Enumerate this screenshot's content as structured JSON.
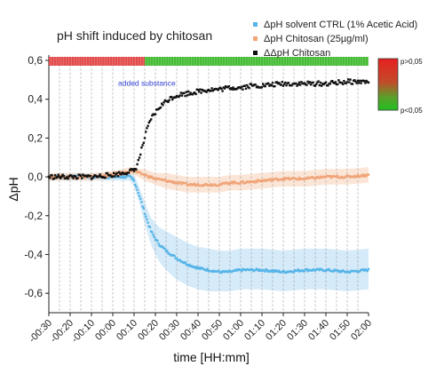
{
  "chart_data": {
    "type": "scatter",
    "title": "pH shift induced by chitosan",
    "xlabel": "time [HH:mm]",
    "ylabel": "ΔpH",
    "xunit": "minutes",
    "xlim": [
      -30,
      120
    ],
    "ylim": [
      -0.7,
      0.6
    ],
    "x_ticks": [
      -30,
      -20,
      -10,
      0,
      10,
      20,
      30,
      40,
      50,
      60,
      70,
      80,
      90,
      100,
      110,
      120
    ],
    "x_tick_labels": [
      "-00:30",
      "-00:20",
      "-00:10",
      "00:00",
      "00:10",
      "00:20",
      "00:30",
      "00:40",
      "00:50",
      "01:00",
      "01:10",
      "01:20",
      "01:30",
      "01:40",
      "01:50",
      "02:00"
    ],
    "y_ticks": [
      -0.6,
      -0.4,
      -0.2,
      0.0,
      0.2,
      0.4,
      0.6
    ],
    "y_tick_labels": [
      "-0,6",
      "-0,4",
      "-0,2",
      "0,0",
      "0,2",
      "0,4",
      "0,6"
    ],
    "legend_position": "top-right",
    "grid": "vertical dashed lines",
    "annotation": {
      "text": "added substance",
      "x": 16,
      "y": 0.47
    },
    "significance_bar": {
      "y": 0.6,
      "segments": [
        {
          "x_start": -30,
          "x_end": 15,
          "color": "#e24a4a"
        },
        {
          "x_start": 15,
          "x_end": 120,
          "color": "#44bb33"
        }
      ]
    },
    "colorbar": {
      "labels": [
        "p>0,05",
        "p<0,05"
      ],
      "colors_top_to_bottom": [
        "#e82020",
        "#c24a2a",
        "#5aa02a",
        "#22c022"
      ]
    },
    "series": [
      {
        "name": "ΔpH solvent CTRL (1% Acetic Acid)",
        "color": "#55b4e8",
        "band_color": "#c7e4f7",
        "marker": "square",
        "x": [
          -30,
          -20,
          -10,
          0,
          8,
          10,
          12,
          14,
          16,
          18,
          20,
          22,
          25,
          30,
          35,
          40,
          45,
          50,
          55,
          60,
          70,
          80,
          90,
          100,
          110,
          120
        ],
        "y": [
          0.0,
          0.0,
          0.0,
          0.0,
          0.0,
          -0.02,
          -0.08,
          -0.15,
          -0.22,
          -0.28,
          -0.32,
          -0.35,
          -0.38,
          -0.42,
          -0.45,
          -0.47,
          -0.48,
          -0.49,
          -0.49,
          -0.48,
          -0.48,
          -0.49,
          -0.48,
          -0.48,
          -0.49,
          -0.48
        ],
        "band_low": [
          -0.02,
          -0.02,
          -0.02,
          -0.02,
          -0.02,
          -0.05,
          -0.12,
          -0.2,
          -0.28,
          -0.35,
          -0.4,
          -0.44,
          -0.48,
          -0.53,
          -0.56,
          -0.58,
          -0.59,
          -0.59,
          -0.59,
          -0.58,
          -0.58,
          -0.59,
          -0.58,
          -0.58,
          -0.59,
          -0.58
        ],
        "band_high": [
          0.02,
          0.02,
          0.02,
          0.02,
          0.02,
          0.01,
          -0.04,
          -0.1,
          -0.16,
          -0.21,
          -0.24,
          -0.26,
          -0.28,
          -0.31,
          -0.34,
          -0.36,
          -0.37,
          -0.38,
          -0.38,
          -0.37,
          -0.37,
          -0.38,
          -0.37,
          -0.37,
          -0.38,
          -0.37
        ]
      },
      {
        "name": "ΔpH Chitosan (25µg/ml)",
        "color": "#f0a478",
        "band_color": "#f9dcc8",
        "marker": "square",
        "x": [
          -30,
          -20,
          -10,
          0,
          5,
          8,
          10,
          12,
          15,
          20,
          25,
          30,
          35,
          40,
          45,
          50,
          55,
          60,
          70,
          80,
          90,
          100,
          110,
          120
        ],
        "y": [
          0.0,
          0.0,
          0.0,
          0.01,
          0.02,
          0.03,
          0.03,
          0.02,
          0.01,
          -0.01,
          -0.02,
          -0.03,
          -0.04,
          -0.04,
          -0.04,
          -0.04,
          -0.03,
          -0.03,
          -0.02,
          -0.01,
          -0.01,
          0.0,
          0.0,
          0.01
        ],
        "band_low": [
          -0.02,
          -0.02,
          -0.02,
          -0.01,
          0.0,
          0.01,
          0.01,
          0.0,
          -0.02,
          -0.04,
          -0.06,
          -0.07,
          -0.08,
          -0.08,
          -0.08,
          -0.08,
          -0.07,
          -0.07,
          -0.06,
          -0.05,
          -0.05,
          -0.04,
          -0.04,
          -0.03
        ],
        "band_high": [
          0.02,
          0.02,
          0.02,
          0.03,
          0.04,
          0.05,
          0.05,
          0.04,
          0.04,
          0.02,
          0.02,
          0.01,
          0.0,
          0.0,
          0.0,
          0.0,
          0.01,
          0.01,
          0.02,
          0.03,
          0.03,
          0.04,
          0.04,
          0.05
        ]
      },
      {
        "name": "ΔΔpH Chitosan",
        "color": "#111111",
        "marker": "square",
        "x": [
          -30,
          -20,
          -10,
          0,
          5,
          8,
          10,
          11,
          12,
          13,
          14,
          15,
          16,
          17,
          18,
          20,
          22,
          25,
          28,
          30,
          35,
          40,
          45,
          50,
          55,
          60,
          65,
          70,
          80,
          90,
          100,
          110,
          120
        ],
        "y": [
          0.0,
          0.0,
          0.0,
          0.01,
          0.02,
          0.03,
          0.03,
          0.05,
          0.08,
          0.12,
          0.16,
          0.2,
          0.24,
          0.27,
          0.3,
          0.33,
          0.36,
          0.39,
          0.41,
          0.42,
          0.43,
          0.44,
          0.45,
          0.45,
          0.46,
          0.46,
          0.47,
          0.47,
          0.48,
          0.48,
          0.48,
          0.49,
          0.49
        ]
      }
    ]
  }
}
